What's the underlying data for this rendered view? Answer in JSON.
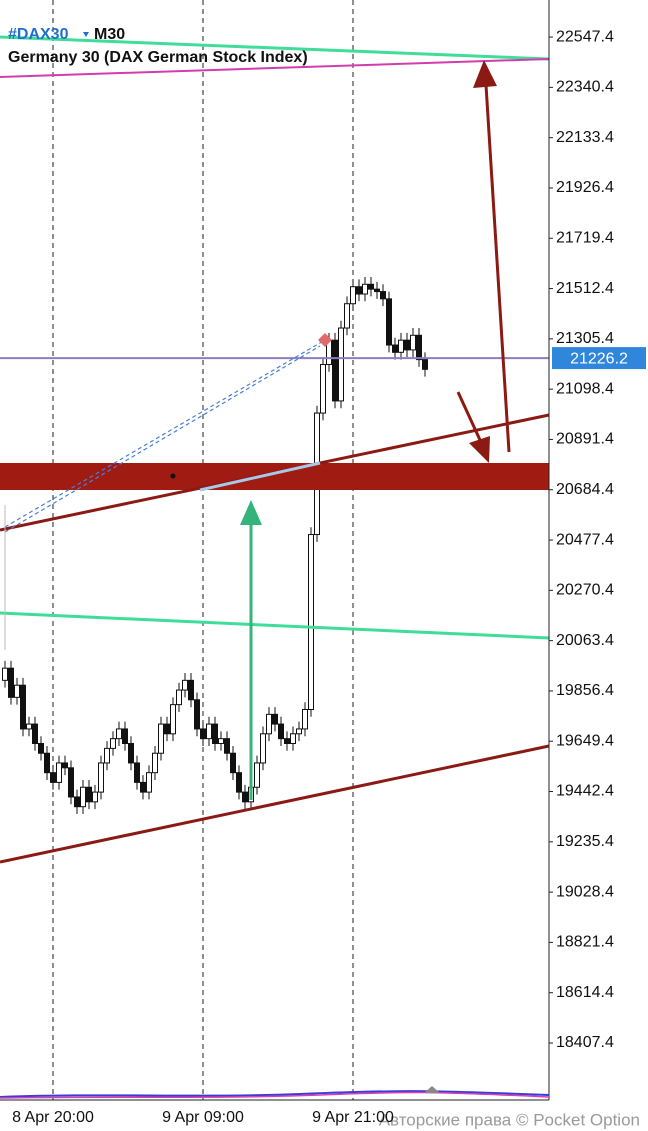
{
  "chart_data": {
    "type": "candlestick",
    "symbol": "#DAX30",
    "timeframe": "M30",
    "title": "Germany 30 (DAX German Stock Index)",
    "categories": [
      null,
      null,
      null,
      null,
      null,
      null,
      null,
      null,
      "8 Apr 20:00",
      null,
      null,
      null,
      null,
      null,
      null,
      null,
      null,
      null,
      null,
      null,
      null,
      null,
      null,
      null,
      null,
      null,
      null,
      null,
      null,
      null,
      null,
      null,
      null,
      "9 Apr 09:00",
      null,
      null,
      null,
      null,
      null,
      null,
      null,
      null,
      null,
      null,
      null,
      null,
      null,
      null,
      null,
      null,
      null,
      null,
      null,
      null,
      null,
      null,
      null,
      null,
      "9 Apr 21:00",
      null,
      null,
      null,
      null,
      null,
      null,
      null,
      null,
      null,
      null,
      null,
      null
    ],
    "open": [
      19900,
      19950,
      19830,
      19880,
      19700,
      19720,
      19640,
      19600,
      19520,
      19480,
      19560,
      19540,
      19420,
      19380,
      19460,
      19400,
      19440,
      19560,
      19620,
      19660,
      19700,
      19640,
      19560,
      19480,
      19440,
      19520,
      19600,
      19720,
      19680,
      19800,
      19860,
      19900,
      19820,
      19700,
      19660,
      19720,
      19640,
      19660,
      19600,
      19520,
      19440,
      19400,
      19460,
      19560,
      19680,
      19760,
      19720,
      19660,
      19640,
      19680,
      19700,
      19780,
      20500,
      21000,
      21200,
      21300,
      21050,
      21350,
      21450,
      21520,
      21490,
      21530,
      21510,
      21500,
      21470,
      21280,
      21250,
      21300,
      21260,
      21320,
      21220
    ],
    "high": [
      19980,
      19980,
      19910,
      19910,
      19750,
      19750,
      19670,
      19630,
      19550,
      19590,
      19590,
      19570,
      19450,
      19490,
      19490,
      19470,
      19590,
      19650,
      19690,
      19730,
      19730,
      19670,
      19590,
      19510,
      19550,
      19630,
      19750,
      19750,
      19830,
      19890,
      19930,
      19930,
      19850,
      19730,
      19750,
      19750,
      19690,
      19690,
      19630,
      19550,
      19470,
      19490,
      19590,
      19710,
      19790,
      19790,
      19750,
      19690,
      19710,
      19730,
      19810,
      20530,
      21030,
      21230,
      21330,
      21330,
      21380,
      21480,
      21550,
      21550,
      21560,
      21560,
      21540,
      21530,
      21500,
      21310,
      21330,
      21330,
      21350,
      21350,
      21250
    ],
    "low": [
      19870,
      19800,
      19800,
      19670,
      19670,
      19610,
      19570,
      19490,
      19450,
      19450,
      19510,
      19390,
      19350,
      19350,
      19370,
      19370,
      19410,
      19530,
      19590,
      19630,
      19610,
      19530,
      19450,
      19410,
      19410,
      19490,
      19570,
      19650,
      19650,
      19770,
      19830,
      19790,
      19670,
      19630,
      19630,
      19610,
      19610,
      19570,
      19490,
      19410,
      19370,
      19370,
      19430,
      19530,
      19650,
      19690,
      19630,
      19610,
      19610,
      19650,
      19670,
      19750,
      20470,
      20970,
      21170,
      21020,
      21020,
      21320,
      21420,
      21460,
      21460,
      21480,
      21470,
      21440,
      21250,
      21220,
      21220,
      21230,
      21230,
      21190,
      21150
    ],
    "close": [
      19950,
      19830,
      19880,
      19700,
      19720,
      19640,
      19600,
      19520,
      19480,
      19560,
      19540,
      19420,
      19380,
      19460,
      19400,
      19440,
      19560,
      19620,
      19660,
      19700,
      19640,
      19560,
      19480,
      19440,
      19520,
      19600,
      19720,
      19680,
      19800,
      19860,
      19900,
      19820,
      19700,
      19660,
      19720,
      19640,
      19660,
      19600,
      19520,
      19440,
      19400,
      19460,
      19560,
      19680,
      19760,
      19720,
      19660,
      19640,
      19680,
      19700,
      19780,
      20500,
      21000,
      21200,
      21300,
      21050,
      21350,
      21450,
      21520,
      21490,
      21530,
      21510,
      21500,
      21470,
      21280,
      21250,
      21300,
      21260,
      21320,
      21220,
      21180
    ],
    "ylim": [
      18214,
      22700
    ],
    "yticks": [
      22547.4,
      22340.4,
      22133.4,
      21926.4,
      21719.4,
      21512.4,
      21305.4,
      21098.4,
      20891.4,
      20684.4,
      20477.4,
      20270.4,
      20063.4,
      19856.4,
      19649.4,
      19442.4,
      19235.4,
      19028.4,
      18821.4,
      18614.4,
      18407.4
    ],
    "current_price": 21226.2
  },
  "watermark": "Авторские права © Pocket Option"
}
